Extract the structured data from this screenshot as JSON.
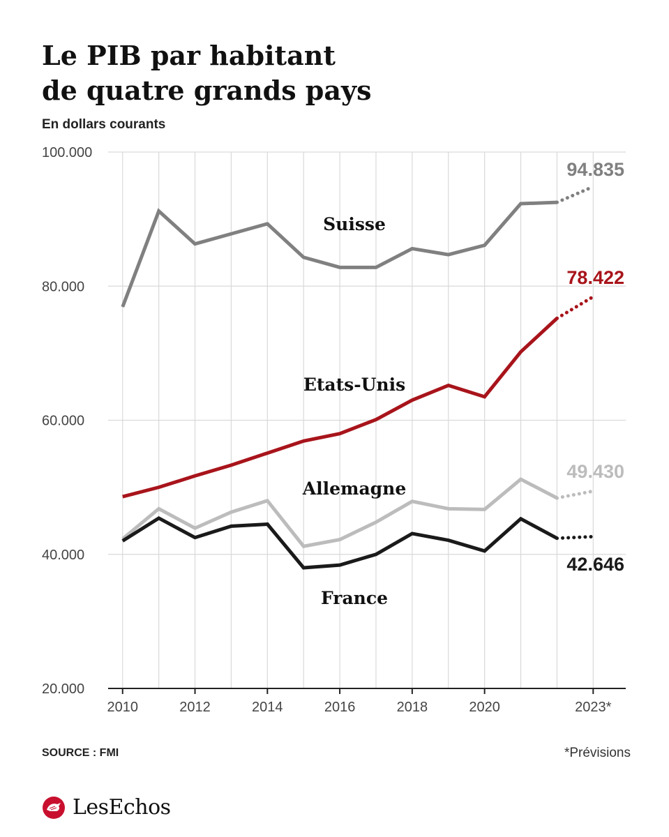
{
  "header": {
    "title_line1": "Le PIB par habitant",
    "title_line2": "de quatre grands pays",
    "subtitle": "En dollars courants"
  },
  "footer": {
    "source": "SOURCE : FMI",
    "note": "*Prévisions",
    "brand": "LesEchos"
  },
  "colors": {
    "suisse": "#808080",
    "etats_unis": "#a8141b",
    "allemagne": "#bcbcbc",
    "france": "#1a1a1a",
    "grid": "#d9d9d9",
    "axis": "#222222",
    "brand": "#c8102e"
  },
  "chart_data": {
    "type": "line",
    "title": "Le PIB par habitant de quatre grands pays",
    "subtitle": "En dollars courants",
    "xlabel": "",
    "ylabel": "",
    "x": [
      2010,
      2011,
      2012,
      2013,
      2014,
      2015,
      2016,
      2017,
      2018,
      2019,
      2020,
      2021,
      2022,
      2023
    ],
    "x_tick_labels": [
      "2010",
      "2012",
      "2014",
      "2016",
      "2018",
      "2020",
      "2023*"
    ],
    "x_tick_values": [
      2010,
      2012,
      2014,
      2016,
      2018,
      2020,
      2023
    ],
    "y_ticks": [
      20000,
      40000,
      60000,
      80000,
      100000
    ],
    "y_tick_labels": [
      "20.000",
      "40.000",
      "60.000",
      "80.000",
      "100.000"
    ],
    "ylim": [
      20000,
      100000
    ],
    "xlim": [
      2009.6,
      2023.9
    ],
    "grid": true,
    "forecast_from": 2022,
    "series": [
      {
        "name": "Suisse",
        "color": "#808080",
        "values": [
          76900,
          91200,
          86300,
          87800,
          89300,
          84300,
          82800,
          82800,
          85600,
          84700,
          86100,
          92300,
          92500,
          94835
        ],
        "end_label": "94.835"
      },
      {
        "name": "Etats-Unis",
        "color": "#a8141b",
        "values": [
          48600,
          50000,
          51700,
          53300,
          55100,
          56900,
          58000,
          60100,
          63000,
          65200,
          63500,
          70200,
          75200,
          78422
        ],
        "end_label": "78.422"
      },
      {
        "name": "Allemagne",
        "color": "#bcbcbc",
        "values": [
          42300,
          46800,
          43900,
          46300,
          48000,
          41200,
          42200,
          44800,
          47900,
          46800,
          46700,
          51200,
          48400,
          49430
        ],
        "end_label": "49.430"
      },
      {
        "name": "France",
        "color": "#1a1a1a",
        "values": [
          42000,
          45400,
          42500,
          44200,
          44500,
          38000,
          38400,
          40000,
          43100,
          42100,
          40500,
          45300,
          42400,
          42646
        ],
        "end_label": "42.646"
      }
    ]
  }
}
